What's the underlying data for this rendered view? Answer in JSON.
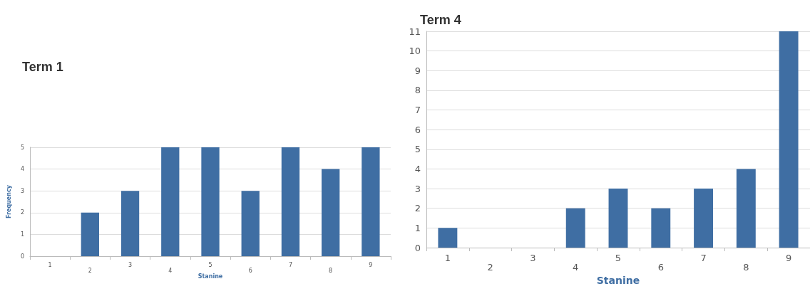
{
  "chart_data": [
    {
      "type": "bar",
      "title": "Term 1",
      "xlabel": "Stanine",
      "ylabel": "Frequency",
      "categories": [
        "1",
        "2",
        "3",
        "4",
        "5",
        "6",
        "7",
        "8",
        "9"
      ],
      "values": [
        0,
        2,
        3,
        5,
        5,
        3,
        5,
        4,
        5
      ],
      "color": "#3f6ea3",
      "ylim": [
        0,
        5
      ],
      "yticks": [
        0,
        1,
        2,
        3,
        4,
        5
      ],
      "grid": "y"
    },
    {
      "type": "bar",
      "title": "Term 4",
      "xlabel": "Stanine",
      "categories": [
        "1",
        "2",
        "3",
        "4",
        "5",
        "6",
        "7",
        "8",
        "9"
      ],
      "values": [
        1,
        0,
        0,
        2,
        3,
        2,
        3,
        4,
        11
      ],
      "color": "#3f6ea3",
      "ylim": [
        0,
        11
      ],
      "yticks": [
        0,
        1,
        2,
        3,
        4,
        5,
        6,
        7,
        8,
        9,
        10,
        11
      ],
      "grid": "y"
    }
  ]
}
